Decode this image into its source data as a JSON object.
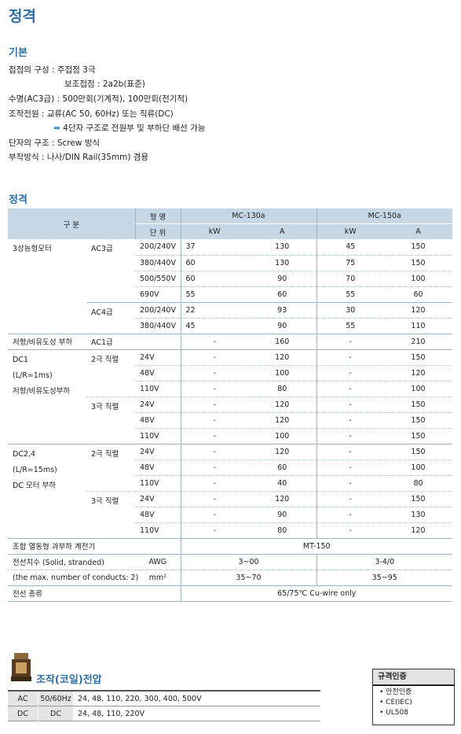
{
  "page_title": "정격",
  "basic": {
    "heading": "기본",
    "lines": [
      "접점의 구성 : 주접점 3극",
      "보조접점 : 2a2b(표준)",
      "수명(AC3급) : 500만회(기계적), 100만회(전기적)",
      "조작전원 : 교류(AC 50, 60Hz) 또는 직류(DC)",
      "4단자 구조로 전원부 및 부하단 배선 가능",
      "단자의 구조 : Screw 방식",
      "부착방식 : 나사/DIN Rail(35mm) 겸용"
    ],
    "arrow": "➡"
  },
  "rating": {
    "heading": "정격",
    "hdr": {
      "gubun": "구 분",
      "model": "형 명",
      "unit": "단 위",
      "mc130": "MC-130a",
      "mc150": "MC-150a",
      "kw": "kW",
      "a": "A"
    },
    "motor": {
      "label": "3상농형모터",
      "ac3": "AC3급",
      "ac4": "AC4급",
      "rows": [
        [
          "200/240V",
          "37",
          "130",
          "45",
          "150"
        ],
        [
          "380/440V",
          "60",
          "130",
          "75",
          "150"
        ],
        [
          "500/550V",
          "60",
          "90",
          "70",
          "100"
        ],
        [
          "690V",
          "55",
          "60",
          "55",
          "60"
        ],
        [
          "200/240V",
          "22",
          "93",
          "30",
          "120"
        ],
        [
          "380/440V",
          "45",
          "90",
          "55",
          "110"
        ]
      ]
    },
    "ac1": {
      "label": "저항/비유도성 부하",
      "cls": "AC1급",
      "v": [
        "-",
        "160",
        "-",
        "210"
      ]
    },
    "dc1": {
      "l1": "DC1",
      "l2": "(L/R=1ms)",
      "l3": "저항/비유도성부하",
      "p2": "2극 직렬",
      "p3": "3극 직렬",
      "rows": [
        [
          "24V",
          "-",
          "120",
          "-",
          "150"
        ],
        [
          "48V",
          "-",
          "100",
          "-",
          "120"
        ],
        [
          "110V",
          "-",
          "80",
          "-",
          "100"
        ],
        [
          "24V",
          "-",
          "120",
          "-",
          "150"
        ],
        [
          "48V",
          "-",
          "120",
          "-",
          "150"
        ],
        [
          "110V",
          "-",
          "100",
          "-",
          "150"
        ]
      ]
    },
    "dc24": {
      "l1": "DC2,4",
      "l2": "(L/R=15ms)",
      "l3": "DC 모터 부하",
      "p2": "2극 직렬",
      "p3": "3극 직렬",
      "rows": [
        [
          "24V",
          "-",
          "120",
          "-",
          "150"
        ],
        [
          "48V",
          "-",
          "60",
          "-",
          "100"
        ],
        [
          "110V",
          "-",
          "40",
          "-",
          "80"
        ],
        [
          "24V",
          "-",
          "120",
          "-",
          "150"
        ],
        [
          "48V",
          "-",
          "90",
          "-",
          "130"
        ],
        [
          "110V",
          "-",
          "80",
          "-",
          "120"
        ]
      ]
    },
    "relay": {
      "label": "조합 열동형 과부하 계전기",
      "value": "MT-150"
    },
    "wire": {
      "l1": "전선치수 (Solid, stranded)",
      "l2": "(the max. number of conducts: 2)",
      "u1": "AWG",
      "u2": "mm²",
      "v1": [
        "3~00",
        "3-4/0"
      ],
      "v2": [
        "35~70",
        "35~95"
      ]
    },
    "wiretype": {
      "label": "전선 종류",
      "value": "65/75℃  Cu-wire only"
    }
  },
  "coil": {
    "heading": "조작(코일)전압",
    "rows": [
      [
        "AC",
        "50/60Hz",
        "24, 48, 110, 220, 300, 400, 500V"
      ],
      [
        "DC",
        "DC",
        "24, 48, 110, 220V"
      ]
    ]
  },
  "cert": {
    "heading": "규격인증",
    "items": [
      "• 안전인증",
      "• CE(IEC)",
      "• UL508"
    ]
  },
  "colors": {
    "accent": "#2e6fa8",
    "header_bg": "#c6d7e6"
  }
}
